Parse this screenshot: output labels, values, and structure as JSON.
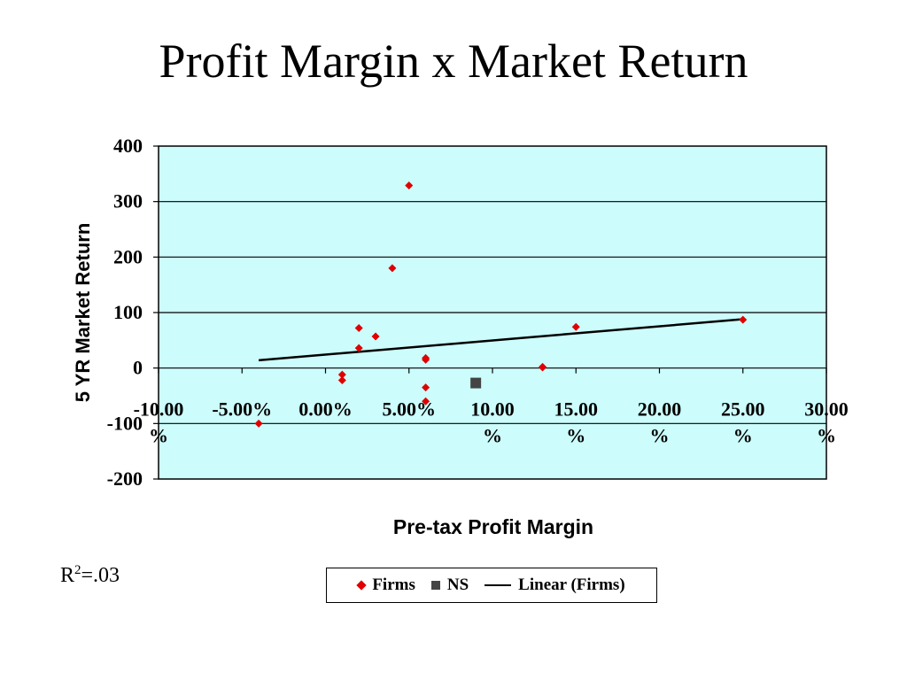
{
  "slide": {
    "title": "Profit Margin x Market Return",
    "r2": {
      "base": "R",
      "exp": "2",
      "value": "=.03"
    }
  },
  "chart_data": {
    "type": "scatter",
    "title": "",
    "xlabel": "Pre-tax Profit Margin",
    "ylabel": "5 YR Market Return",
    "xlim": [
      -10,
      30
    ],
    "ylim": [
      -200,
      400
    ],
    "x_ticks": [
      {
        "value": -10,
        "label": [
          "-10.00",
          "%"
        ]
      },
      {
        "value": -5,
        "label": [
          "-5.00%"
        ]
      },
      {
        "value": 0,
        "label": [
          "0.00%"
        ]
      },
      {
        "value": 5,
        "label": [
          "5.00%"
        ]
      },
      {
        "value": 10,
        "label": [
          "10.00",
          "%"
        ]
      },
      {
        "value": 15,
        "label": [
          "15.00",
          "%"
        ]
      },
      {
        "value": 20,
        "label": [
          "20.00",
          "%"
        ]
      },
      {
        "value": 25,
        "label": [
          "25.00",
          "%"
        ]
      },
      {
        "value": 30,
        "label": [
          "30.00",
          "%"
        ]
      }
    ],
    "y_ticks": [
      400,
      300,
      200,
      100,
      0,
      -100,
      -200
    ],
    "grid": "horizontal",
    "plot_background": "#ccfcfc",
    "legend_position": "bottom",
    "series": [
      {
        "name": "Firms",
        "marker": "diamond",
        "color": "#e00000",
        "points": [
          [
            -4,
            -100
          ],
          [
            1,
            -12
          ],
          [
            1,
            -22
          ],
          [
            2,
            72
          ],
          [
            2,
            36
          ],
          [
            3,
            57
          ],
          [
            4,
            180
          ],
          [
            5,
            329
          ],
          [
            6,
            18
          ],
          [
            6,
            15
          ],
          [
            6,
            -35
          ],
          [
            6,
            -60
          ],
          [
            13,
            2
          ],
          [
            13,
            1
          ],
          [
            15,
            74
          ],
          [
            25,
            87
          ]
        ]
      },
      {
        "name": "NS",
        "marker": "square",
        "color": "#444444",
        "points": [
          [
            9,
            -27
          ]
        ]
      },
      {
        "name": "Linear (Firms)",
        "marker": "line",
        "color": "#000000",
        "points": [
          [
            -4,
            14
          ],
          [
            25,
            88
          ]
        ]
      }
    ]
  }
}
